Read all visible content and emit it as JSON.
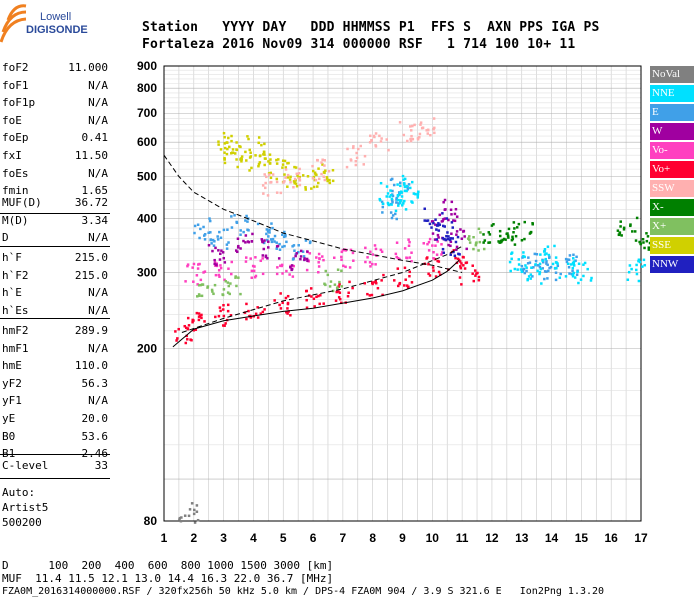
{
  "logo": {
    "line1": "Lowell",
    "line2": "DIGISONDE"
  },
  "header": {
    "labels": "Station   YYYY DAY   DDD HHMMSS P1  FFS S  AXN PPS IGA PS",
    "values": "Fortaleza 2016 Nov09 314 000000 RSF   1 714 100 10+ 11"
  },
  "params": {
    "group1": [
      {
        "name": "foF2",
        "value": "11.000"
      },
      {
        "name": "foF1",
        "value": "N/A"
      },
      {
        "name": "foF1p",
        "value": "N/A"
      },
      {
        "name": "foE",
        "value": "N/A"
      },
      {
        "name": "foEp",
        "value": "0.41"
      },
      {
        "name": "fxI",
        "value": "11.50"
      },
      {
        "name": "foEs",
        "value": "N/A"
      },
      {
        "name": "fmin",
        "value": "1.65"
      }
    ],
    "group2": [
      {
        "name": "MUF(D)",
        "value": "36.72"
      },
      {
        "name": "M(D)",
        "value": "3.34"
      },
      {
        "name": "D",
        "value": "N/A"
      }
    ],
    "group3": [
      {
        "name": "h`F",
        "value": "215.0"
      },
      {
        "name": "h`F2",
        "value": "215.0"
      },
      {
        "name": "h`E",
        "value": "N/A"
      },
      {
        "name": "h`Es",
        "value": "N/A"
      }
    ],
    "group4": [
      {
        "name": "hmF2",
        "value": "289.9"
      },
      {
        "name": "hmF1",
        "value": "N/A"
      },
      {
        "name": "hmE",
        "value": "110.0"
      },
      {
        "name": "yF2",
        "value": "56.3"
      },
      {
        "name": "yF1",
        "value": "N/A"
      },
      {
        "name": "yE",
        "value": "20.0"
      },
      {
        "name": "B0",
        "value": "53.6"
      },
      {
        "name": "B1",
        "value": "2.46"
      }
    ],
    "group5": [
      {
        "name": "C-level",
        "value": "33"
      }
    ]
  },
  "auto": {
    "label": "Auto:",
    "method": "Artist5",
    "version": "500200"
  },
  "legend": [
    {
      "label": "NoVal",
      "color": "#808080",
      "text_color": "#ffffff"
    },
    {
      "label": "NNE",
      "color": "#00e0ff",
      "text_color": "#ffffff"
    },
    {
      "label": "E",
      "color": "#40a0e8",
      "text_color": "#ffffff"
    },
    {
      "label": "W",
      "color": "#a000a0",
      "text_color": "#ffffff"
    },
    {
      "label": "Vo-",
      "color": "#ff40c0",
      "text_color": "#ffffff"
    },
    {
      "label": "Vo+",
      "color": "#ff0030",
      "text_color": "#ffffff"
    },
    {
      "label": "SSW",
      "color": "#ffb0b0",
      "text_color": "#ffffff"
    },
    {
      "label": "X-",
      "color": "#008000",
      "text_color": "#ffffff"
    },
    {
      "label": "X+",
      "color": "#80c060",
      "text_color": "#ffffff"
    },
    {
      "label": "SSE",
      "color": "#d0d000",
      "text_color": "#ffffff"
    },
    {
      "label": "NNW",
      "color": "#2020c0",
      "text_color": "#ffffff"
    }
  ],
  "bottom": {
    "distance_row": "D      100  200  400  600  800 1000 1500 3000 [km]",
    "muf_row": "MUF  11.4 11.5 12.1 13.0 14.4 16.3 22.0 36.7 [MHz]",
    "footer": "FZA0M_2016314000000.RSF / 320fx256h 50 kHz 5.0 km / DPS-4 FZA0M 904 / 3.9 S 321.6 E   Ion2Png 1.3.20"
  },
  "chart_data": {
    "type": "scatter",
    "x_ticks": [
      1,
      2,
      3,
      4,
      5,
      6,
      7,
      8,
      9,
      10,
      11,
      12,
      13,
      14,
      15,
      16,
      17
    ],
    "y_ticks": [
      80,
      200,
      300,
      400,
      500,
      600,
      700,
      800,
      900
    ],
    "xlim": [
      1,
      17
    ],
    "ylim": [
      80,
      900
    ],
    "y_scale": "log",
    "grid": true,
    "legend_position": "right",
    "traces": [
      {
        "name": "Vo+",
        "x": [
          1.6,
          2.0,
          3.0,
          4.0,
          5.0,
          6.0,
          7.0,
          8.0,
          9.0,
          10.0,
          10.8,
          11.2
        ],
        "y": [
          220,
          232,
          240,
          248,
          255,
          262,
          272,
          282,
          295,
          310,
          325,
          300
        ]
      },
      {
        "name": "Vo-",
        "x": [
          2.0,
          3.0,
          4.0,
          5.0,
          6.0,
          7.0,
          8.0,
          9.0,
          10.0
        ],
        "y": [
          300,
          305,
          310,
          312,
          318,
          322,
          330,
          340,
          345
        ]
      },
      {
        "name": "E",
        "x": [
          2.2,
          2.8,
          3.5,
          4.3,
          5.0,
          5.6,
          8.6,
          8.9,
          13.2,
          13.6,
          14.0,
          14.5
        ],
        "y": [
          380,
          360,
          390,
          370,
          355,
          340,
          420,
          470,
          310,
          320,
          305,
          315
        ]
      },
      {
        "name": "NNE",
        "x": [
          8.5,
          8.8,
          9.0,
          9.2,
          12.9,
          13.3,
          13.8,
          14.4,
          15.0,
          16.8
        ],
        "y": [
          460,
          440,
          480,
          455,
          320,
          300,
          330,
          310,
          300,
          305
        ]
      },
      {
        "name": "SSE",
        "x": [
          3.0,
          3.3,
          3.6,
          4.0,
          4.4,
          4.8,
          5.2,
          5.8,
          6.3
        ],
        "y": [
          600,
          570,
          550,
          590,
          540,
          520,
          500,
          490,
          510
        ]
      },
      {
        "name": "W",
        "x": [
          2.8,
          3.6,
          4.5,
          5.5,
          10.2,
          10.5,
          10.8
        ],
        "y": [
          330,
          350,
          340,
          320,
          380,
          420,
          360
        ]
      },
      {
        "name": "SSW",
        "x": [
          4.6,
          5.2,
          6.2,
          7.4,
          8.2,
          9.2,
          9.8
        ],
        "y": [
          480,
          500,
          520,
          560,
          610,
          640,
          650
        ]
      },
      {
        "name": "X-",
        "x": [
          12.0,
          12.5,
          13.0,
          16.5,
          17.0
        ],
        "y": [
          370,
          360,
          380,
          385,
          360
        ]
      },
      {
        "name": "X+",
        "x": [
          2.4,
          3.2,
          6.6,
          11.5
        ],
        "y": [
          270,
          280,
          290,
          360
        ]
      },
      {
        "name": "NNW",
        "x": [
          10.0,
          10.4,
          10.6
        ],
        "y": [
          400,
          380,
          350
        ]
      },
      {
        "name": "NoVal",
        "x": [
          1.8
        ],
        "y": [
          84
        ]
      }
    ],
    "trace_lines": [
      {
        "style": "solid",
        "x": [
          1.3,
          2.0,
          3.0,
          4.0,
          5.0,
          6.0,
          7.0,
          8.0,
          9.0,
          10.0,
          10.5,
          10.9
        ],
        "y": [
          202,
          222,
          232,
          238,
          244,
          248,
          255,
          262,
          272,
          288,
          302,
          320
        ]
      },
      {
        "style": "dashed",
        "x": [
          1.0,
          1.5,
          2.0,
          3.0,
          4.0,
          5.0,
          6.0,
          7.0,
          8.0,
          9.0,
          10.0,
          11.0
        ],
        "y": [
          560,
          500,
          460,
          420,
          395,
          370,
          355,
          340,
          330,
          320,
          312,
          300
        ]
      },
      {
        "style": "dashed",
        "x": [
          1.6,
          3.0,
          5.0,
          7.0,
          9.0,
          10.5,
          11.0
        ],
        "y": [
          218,
          235,
          258,
          275,
          300,
          330,
          345
        ]
      }
    ]
  }
}
